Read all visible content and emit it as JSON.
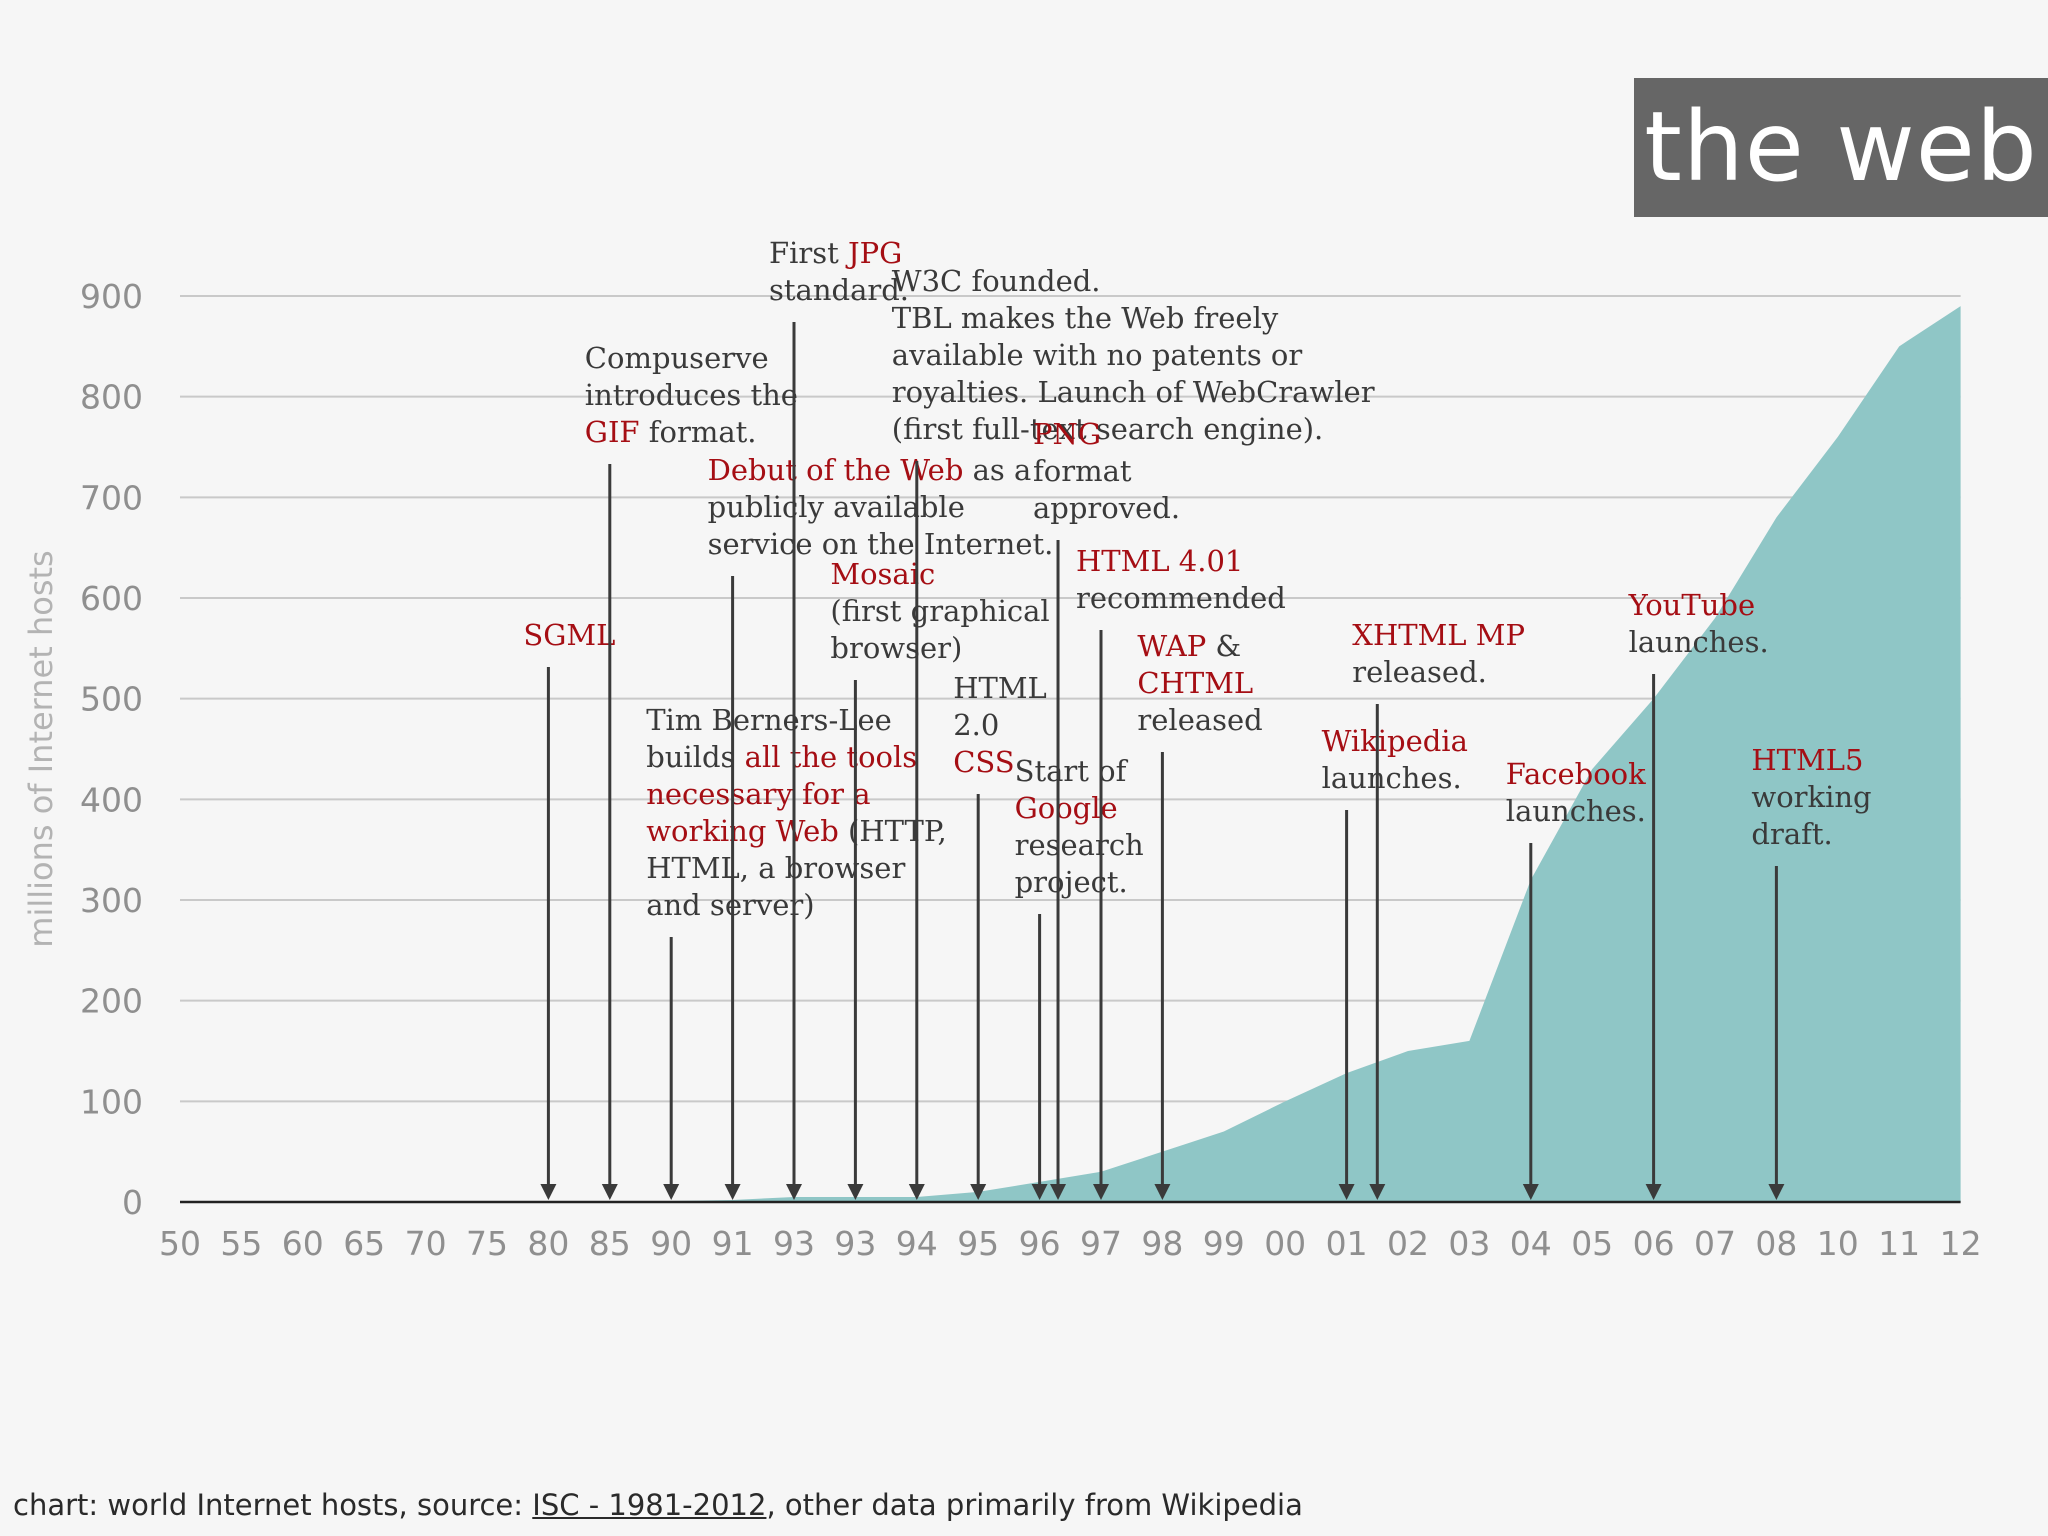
{
  "title": "the web",
  "footer": {
    "prefix": "chart: world Internet hosts, source: ",
    "source_link": "ISC - 1981-2012",
    "suffix": ", other data primarily from Wikipedia"
  },
  "colors": {
    "area": "#8fc6c6",
    "highlight": "#a50e14",
    "text": "#3a3a3a",
    "title_bg": "#666666"
  },
  "chart_data": {
    "type": "area",
    "ylabel": "millions of Internet hosts",
    "xlabel": "",
    "ylim": [
      0,
      900
    ],
    "yticks": [
      0,
      100,
      200,
      300,
      400,
      500,
      600,
      700,
      800,
      900
    ],
    "grid": true,
    "x_tick_labels": [
      "50",
      "55",
      "60",
      "65",
      "70",
      "75",
      "80",
      "85",
      "90",
      "91",
      "93",
      "93",
      "94",
      "95",
      "96",
      "97",
      "98",
      "99",
      "00",
      "01",
      "02",
      "03",
      "04",
      "05",
      "06",
      "07",
      "08",
      "10",
      "11",
      "12"
    ],
    "series": [
      {
        "name": "",
        "points": [
          [
            "50",
            0
          ],
          [
            "55",
            0
          ],
          [
            "60",
            0.5
          ],
          [
            "65",
            1
          ],
          [
            "70",
            0
          ],
          [
            "75",
            1
          ],
          [
            "80",
            1
          ],
          [
            "85",
            1
          ],
          [
            "90",
            1
          ],
          [
            "91",
            2
          ],
          [
            "93",
            5
          ],
          [
            "93",
            5
          ],
          [
            "94",
            5
          ],
          [
            "95",
            10
          ],
          [
            "96",
            20
          ],
          [
            "97",
            30
          ],
          [
            "98",
            50
          ],
          [
            "99",
            70
          ],
          [
            "00",
            100
          ],
          [
            "01",
            128
          ],
          [
            "02",
            150
          ],
          [
            "03",
            160
          ],
          [
            "04",
            320
          ],
          [
            "05",
            430
          ],
          [
            "06",
            500
          ],
          [
            "07",
            580
          ],
          [
            "08",
            680
          ],
          [
            "10",
            760
          ],
          [
            "11",
            850
          ],
          [
            "12",
            890
          ]
        ]
      }
    ],
    "annotations": [
      {
        "tick_index": 6,
        "label_y": 645,
        "lines": [
          [
            {
              "t": "SGML",
              "r": true
            }
          ]
        ]
      },
      {
        "tick_index": 7,
        "label_y": 368,
        "lines": [
          [
            {
              "t": "Compuserve",
              "r": false
            }
          ],
          [
            {
              "t": "introduces the",
              "r": false
            }
          ],
          [
            {
              "t": "GIF",
              "r": true
            },
            {
              "t": " format.",
              "r": false
            }
          ]
        ]
      },
      {
        "tick_index": 8,
        "label_y": 730,
        "lines": [
          [
            {
              "t": "Tim Berners-Lee",
              "r": false
            }
          ],
          [
            {
              "t": "builds ",
              "r": false
            },
            {
              "t": "all the tools",
              "r": true
            }
          ],
          [
            {
              "t": "necessary for a",
              "r": true
            }
          ],
          [
            {
              "t": "working Web",
              "r": true
            },
            {
              "t": " (HTTP,",
              "r": false
            }
          ],
          [
            {
              "t": "HTML, a browser",
              "r": false
            }
          ],
          [
            {
              "t": "and server)",
              "r": false
            }
          ]
        ]
      },
      {
        "tick_index": 9,
        "label_y": 480,
        "lines": [
          [
            {
              "t": "Debut of the Web",
              "r": true
            },
            {
              "t": " as a",
              "r": false
            }
          ],
          [
            {
              "t": "publicly available",
              "r": false
            }
          ],
          [
            {
              "t": "service on the Internet.",
              "r": false
            }
          ]
        ]
      },
      {
        "tick_index": 10,
        "label_y": 263,
        "lines": [
          [
            {
              "t": "First ",
              "r": false
            },
            {
              "t": "JPG",
              "r": true
            }
          ],
          [
            {
              "t": "standard.",
              "r": false
            }
          ]
        ]
      },
      {
        "tick_index": 11,
        "label_y": 584,
        "lines": [
          [
            {
              "t": "Mosaic",
              "r": true
            }
          ],
          [
            {
              "t": "(first graphical",
              "r": false
            }
          ],
          [
            {
              "t": "browser)",
              "r": false
            }
          ]
        ]
      },
      {
        "tick_index": 12,
        "label_y": 291,
        "lines": [
          [
            {
              "t": "W3C founded.",
              "r": false
            }
          ],
          [
            {
              "t": "TBL makes the Web freely",
              "r": false
            }
          ],
          [
            {
              "t": "available with no patents or",
              "r": false
            }
          ],
          [
            {
              "t": "royalties. Launch of WebCrawler",
              "r": false
            }
          ],
          [
            {
              "t": "(first full-text search engine).",
              "r": false
            }
          ]
        ]
      },
      {
        "tick_index": 13,
        "label_y": 698,
        "lines": [
          [
            {
              "t": "HTML",
              "r": false
            }
          ],
          [
            {
              "t": "2.0",
              "r": false
            }
          ],
          [
            {
              "t": "CSS",
              "r": true
            }
          ]
        ]
      },
      {
        "tick_index": 14,
        "label_y": 781,
        "lines": [
          [
            {
              "t": "Start of",
              "r": false
            }
          ],
          [
            {
              "t": "Google",
              "r": true
            }
          ],
          [
            {
              "t": "research",
              "r": false
            }
          ],
          [
            {
              "t": "project.",
              "r": false
            }
          ]
        ]
      },
      {
        "tick_index": 14.3,
        "label_y": 444,
        "lines": [
          [
            {
              "t": "PNG",
              "r": true
            }
          ],
          [
            {
              "t": "format",
              "r": false
            }
          ],
          [
            {
              "t": "approved.",
              "r": false
            }
          ]
        ]
      },
      {
        "tick_index": 15,
        "label_y": 571,
        "lines": [
          [
            {
              "t": "HTML 4.01",
              "r": true
            }
          ],
          [
            {
              "t": "recommended",
              "r": false
            }
          ]
        ]
      },
      {
        "tick_index": 16,
        "label_y": 656,
        "lines": [
          [
            {
              "t": "WAP",
              "r": true
            },
            {
              "t": " &",
              "r": false
            }
          ],
          [
            {
              "t": "CHTML",
              "r": true
            }
          ],
          [
            {
              "t": "released",
              "r": false
            }
          ]
        ]
      },
      {
        "tick_index": 19,
        "label_y": 751,
        "lines": [
          [
            {
              "t": "Wikipedia",
              "r": true
            }
          ],
          [
            {
              "t": "launches.",
              "r": false
            }
          ]
        ]
      },
      {
        "tick_index": 19.5,
        "label_y": 645,
        "lines": [
          [
            {
              "t": "XHTML MP",
              "r": true
            }
          ],
          [
            {
              "t": "released.",
              "r": false
            }
          ]
        ]
      },
      {
        "tick_index": 22,
        "label_y": 784,
        "lines": [
          [
            {
              "t": "Facebook",
              "r": true
            }
          ],
          [
            {
              "t": "launches.",
              "r": false
            }
          ]
        ]
      },
      {
        "tick_index": 24,
        "label_y": 615,
        "lines": [
          [
            {
              "t": "YouTube",
              "r": true
            }
          ],
          [
            {
              "t": "launches.",
              "r": false
            }
          ]
        ]
      },
      {
        "tick_index": 26,
        "label_y": 770,
        "lines": [
          [
            {
              "t": "HTML5",
              "r": true
            }
          ],
          [
            {
              "t": "working",
              "r": false
            }
          ],
          [
            {
              "t": "draft.",
              "r": false
            }
          ]
        ]
      }
    ]
  }
}
